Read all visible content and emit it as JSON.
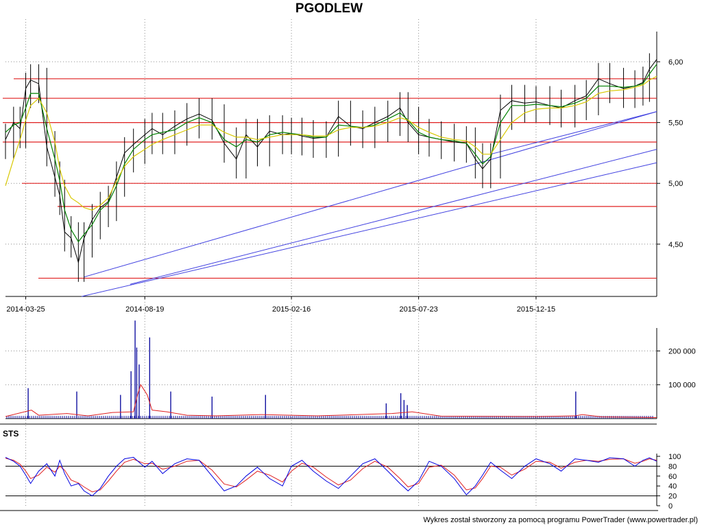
{
  "chart_title": "PGODLEW",
  "credit": "Wykres został stworzony za pomocą programu PowerTrader (www.powertrader.pl)",
  "colors": {
    "price": "#000000",
    "ma_short": "#008000",
    "ma_long": "#d8c800",
    "support_resistance": "#e02020",
    "trendline": "#4040e0",
    "volume": "#1010a0",
    "volume_avg": "#e02020",
    "sts_k": "#0000e0",
    "sts_d": "#e02020",
    "grid": "#8c8c8c"
  },
  "chart_data": [
    {
      "type": "line",
      "panel": "price",
      "title": "PGODLEW",
      "x_ticks": [
        "2014-03-25",
        "2014-08-19",
        "2015-02-16",
        "2015-07-23",
        "2015-12-15"
      ],
      "y_ticks": [
        "4,50",
        "5,00",
        "5,50",
        "6,00"
      ],
      "ylim": [
        4.07,
        6.35
      ],
      "x_start": "2014-02-28",
      "x_end": "2016-05-12",
      "series": [
        {
          "x": [
            "2014-02-28",
            "2014-03-10",
            "2014-03-18",
            "2014-03-25",
            "2014-03-31",
            "2014-04-10",
            "2014-04-20",
            "2014-04-30",
            "2014-05-06",
            "2014-05-12",
            "2014-05-20",
            "2014-05-29",
            "2014-06-05",
            "2014-06-15",
            "2014-06-25",
            "2014-07-05",
            "2014-07-15",
            "2014-07-25",
            "2014-08-05",
            "2014-08-19",
            "2014-08-28",
            "2014-09-10",
            "2014-09-25",
            "2014-10-10",
            "2014-10-25",
            "2014-11-10",
            "2014-11-25",
            "2014-12-10",
            "2014-12-22",
            "2015-01-05",
            "2015-01-20",
            "2015-02-05",
            "2015-02-16",
            "2015-03-01",
            "2015-03-15",
            "2015-03-31",
            "2015-04-15",
            "2015-04-30",
            "2015-05-15",
            "2015-05-30",
            "2015-06-15",
            "2015-06-30",
            "2015-07-10",
            "2015-07-23",
            "2015-08-05",
            "2015-08-20",
            "2015-09-05",
            "2015-09-20",
            "2015-10-01",
            "2015-10-10",
            "2015-10-20",
            "2015-11-01",
            "2015-11-15",
            "2015-12-01",
            "2015-12-15",
            "2016-01-01",
            "2016-01-15",
            "2016-02-01",
            "2016-02-15",
            "2016-03-01",
            "2016-03-15",
            "2016-04-01",
            "2016-04-15",
            "2016-04-25",
            "2016-05-03",
            "2016-05-12"
          ],
          "close": [
            5.36,
            5.5,
            5.45,
            5.78,
            5.85,
            5.82,
            5.3,
            5.05,
            4.9,
            4.6,
            4.55,
            4.35,
            4.55,
            4.7,
            4.8,
            4.85,
            5.05,
            5.25,
            5.32,
            5.4,
            5.45,
            5.4,
            5.47,
            5.53,
            5.57,
            5.52,
            5.33,
            5.2,
            5.4,
            5.3,
            5.43,
            5.4,
            5.41,
            5.39,
            5.37,
            5.38,
            5.55,
            5.47,
            5.45,
            5.5,
            5.55,
            5.62,
            5.5,
            5.4,
            5.38,
            5.36,
            5.34,
            5.33,
            5.2,
            5.12,
            5.2,
            5.6,
            5.68,
            5.66,
            5.67,
            5.64,
            5.62,
            5.68,
            5.72,
            5.86,
            5.82,
            5.78,
            5.8,
            5.83,
            5.94,
            6.02
          ]
        },
        {
          "name": "",
          "type": "moving-average-short",
          "values": [
            5.42,
            5.48,
            5.5,
            5.62,
            5.74,
            5.74,
            5.45,
            5.2,
            5.02,
            4.78,
            4.62,
            4.52,
            4.58,
            4.66,
            4.78,
            4.84,
            4.98,
            5.16,
            5.28,
            5.36,
            5.4,
            5.42,
            5.44,
            5.5,
            5.54,
            5.5,
            5.36,
            5.3,
            5.36,
            5.34,
            5.4,
            5.42,
            5.41,
            5.4,
            5.38,
            5.38,
            5.48,
            5.47,
            5.46,
            5.48,
            5.53,
            5.58,
            5.52,
            5.42,
            5.38,
            5.36,
            5.35,
            5.33,
            5.24,
            5.16,
            5.22,
            5.5,
            5.64,
            5.64,
            5.65,
            5.64,
            5.63,
            5.66,
            5.7,
            5.8,
            5.8,
            5.79,
            5.8,
            5.82,
            5.9,
            5.98
          ]
        },
        {
          "name": "",
          "type": "moving-average-long",
          "values": [
            4.98,
            5.2,
            5.36,
            5.52,
            5.64,
            5.7,
            5.58,
            5.34,
            5.12,
            4.98,
            4.88,
            4.84,
            4.8,
            4.78,
            4.82,
            4.88,
            5.02,
            5.14,
            5.22,
            5.28,
            5.32,
            5.36,
            5.4,
            5.44,
            5.48,
            5.48,
            5.42,
            5.38,
            5.38,
            5.36,
            5.38,
            5.4,
            5.4,
            5.4,
            5.39,
            5.39,
            5.44,
            5.46,
            5.46,
            5.47,
            5.5,
            5.54,
            5.52,
            5.46,
            5.42,
            5.38,
            5.36,
            5.35,
            5.3,
            5.24,
            5.24,
            5.36,
            5.5,
            5.58,
            5.61,
            5.62,
            5.62,
            5.64,
            5.67,
            5.74,
            5.76,
            5.77,
            5.79,
            5.81,
            5.85,
            5.88
          ]
        }
      ],
      "horizontal_levels": [
        5.86,
        5.7,
        5.5,
        5.34,
        5.0,
        4.81,
        4.22
      ],
      "trendlines": [
        {
          "from": [
            "2014-06-05",
            4.23
          ],
          "to": [
            "2016-05-12",
            5.59
          ]
        },
        {
          "from": [
            "2014-06-02",
            4.07
          ],
          "to": [
            "2016-05-12",
            5.17
          ]
        },
        {
          "from": [
            "2014-08-01",
            4.17
          ],
          "to": [
            "2016-05-12",
            5.28
          ]
        },
        {
          "from": [
            "2015-10-20",
            5.24
          ],
          "to": [
            "2016-05-12",
            5.59
          ]
        }
      ]
    },
    {
      "type": "bar",
      "panel": "volume",
      "y_ticks": [
        "100 000",
        "200 000"
      ],
      "ylim": [
        0,
        280000
      ],
      "spikes": [
        {
          "x": "2014-03-28",
          "value": 90000
        },
        {
          "x": "2014-05-27",
          "value": 80000
        },
        {
          "x": "2014-07-20",
          "value": 70000
        },
        {
          "x": "2014-08-02",
          "value": 140000
        },
        {
          "x": "2014-08-07",
          "value": 290000
        },
        {
          "x": "2014-08-09",
          "value": 210000
        },
        {
          "x": "2014-08-12",
          "value": 160000
        },
        {
          "x": "2014-08-25",
          "value": 240000
        },
        {
          "x": "2014-09-20",
          "value": 80000
        },
        {
          "x": "2014-11-10",
          "value": 65000
        },
        {
          "x": "2015-01-15",
          "value": 70000
        },
        {
          "x": "2015-06-13",
          "value": 45000
        },
        {
          "x": "2015-07-01",
          "value": 75000
        },
        {
          "x": "2015-07-05",
          "value": 55000
        },
        {
          "x": "2015-07-09",
          "value": 40000
        },
        {
          "x": "2016-02-02",
          "value": 80000
        }
      ],
      "baseline_volume": 8000,
      "average": [
        {
          "x": "2014-02-28",
          "value": 6000
        },
        {
          "x": "2014-04-01",
          "value": 25000
        },
        {
          "x": "2014-04-10",
          "value": 10000
        },
        {
          "x": "2014-05-15",
          "value": 15000
        },
        {
          "x": "2014-06-10",
          "value": 8000
        },
        {
          "x": "2014-07-10",
          "value": 18000
        },
        {
          "x": "2014-08-05",
          "value": 20000
        },
        {
          "x": "2014-08-10",
          "value": 70000
        },
        {
          "x": "2014-08-14",
          "value": 100000
        },
        {
          "x": "2014-08-22",
          "value": 70000
        },
        {
          "x": "2014-08-28",
          "value": 25000
        },
        {
          "x": "2014-09-15",
          "value": 20000
        },
        {
          "x": "2014-10-10",
          "value": 10000
        },
        {
          "x": "2014-11-15",
          "value": 8000
        },
        {
          "x": "2015-01-10",
          "value": 12000
        },
        {
          "x": "2015-03-20",
          "value": 8000
        },
        {
          "x": "2015-06-20",
          "value": 15000
        },
        {
          "x": "2015-07-15",
          "value": 20000
        },
        {
          "x": "2015-08-20",
          "value": 7000
        },
        {
          "x": "2015-12-20",
          "value": 6000
        },
        {
          "x": "2016-02-01",
          "value": 8000
        },
        {
          "x": "2016-02-10",
          "value": 12000
        },
        {
          "x": "2016-03-05",
          "value": 5000
        },
        {
          "x": "2016-05-12",
          "value": 3000
        }
      ]
    },
    {
      "type": "line",
      "panel": "oscillator",
      "title": "STS",
      "y_ticks": [
        "0",
        "20",
        "40",
        "60",
        "80",
        "100"
      ],
      "ylim": [
        0,
        100
      ],
      "levels": [
        20,
        80
      ],
      "series": [
        {
          "name": "",
          "type": "%K",
          "values": [
            98,
            90,
            80,
            62,
            45,
            70,
            85,
            60,
            92,
            65,
            40,
            45,
            30,
            20,
            35,
            60,
            80,
            95,
            98,
            78,
            90,
            65,
            85,
            95,
            92,
            60,
            30,
            40,
            60,
            78,
            55,
            40,
            80,
            92,
            70,
            50,
            35,
            60,
            85,
            95,
            70,
            45,
            30,
            50,
            90,
            80,
            55,
            22,
            40,
            62,
            88,
            72,
            55,
            80,
            95,
            85,
            70,
            95,
            92,
            88,
            97,
            95,
            80,
            92,
            97,
            90
          ]
        },
        {
          "name": "",
          "type": "%D",
          "values": [
            96,
            92,
            84,
            70,
            55,
            62,
            78,
            68,
            80,
            72,
            52,
            46,
            38,
            28,
            32,
            50,
            70,
            88,
            94,
            85,
            86,
            74,
            80,
            90,
            92,
            72,
            44,
            38,
            52,
            70,
            62,
            48,
            70,
            86,
            78,
            58,
            42,
            52,
            75,
            90,
            78,
            55,
            38,
            45,
            78,
            82,
            62,
            32,
            36,
            55,
            80,
            78,
            62,
            74,
            90,
            88,
            76,
            88,
            92,
            90,
            94,
            95,
            86,
            90,
            95,
            92
          ]
        }
      ]
    }
  ]
}
